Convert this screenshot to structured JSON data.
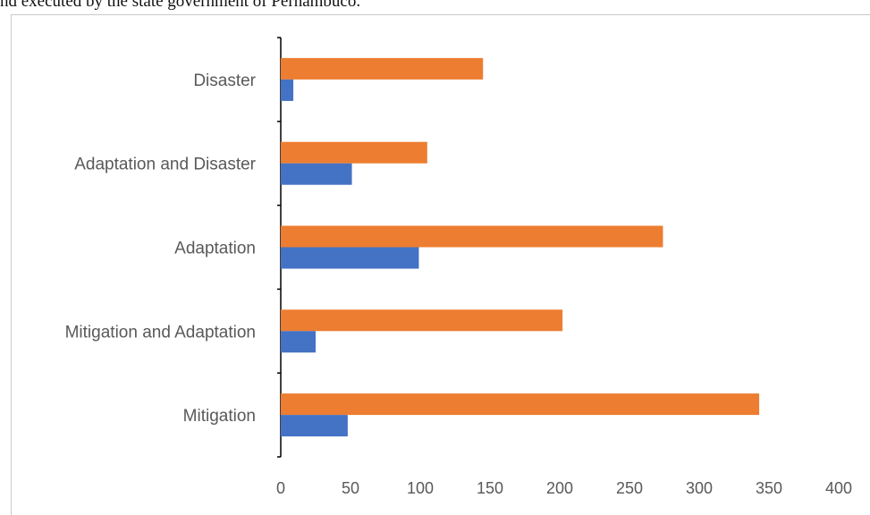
{
  "caption": "nd executed by the state government of Pernambuco.",
  "chart_data": {
    "type": "bar",
    "orientation": "horizontal",
    "categories": [
      "Mitigation",
      "Mitigation and Adaptation",
      "Adaptation",
      "Adaptation and Disaster",
      "Disaster"
    ],
    "series": [
      {
        "values": [
          48,
          25,
          99,
          51,
          9
        ],
        "color": "#4472c4"
      },
      {
        "values": [
          343,
          202,
          274,
          105,
          145
        ],
        "color": "#ed7d31"
      }
    ],
    "x_ticks": [
      "0",
      "50",
      "100",
      "150",
      "200",
      "250",
      "300",
      "350",
      "400"
    ],
    "xlim": [
      0,
      400
    ],
    "grid": false,
    "legend": "none"
  }
}
